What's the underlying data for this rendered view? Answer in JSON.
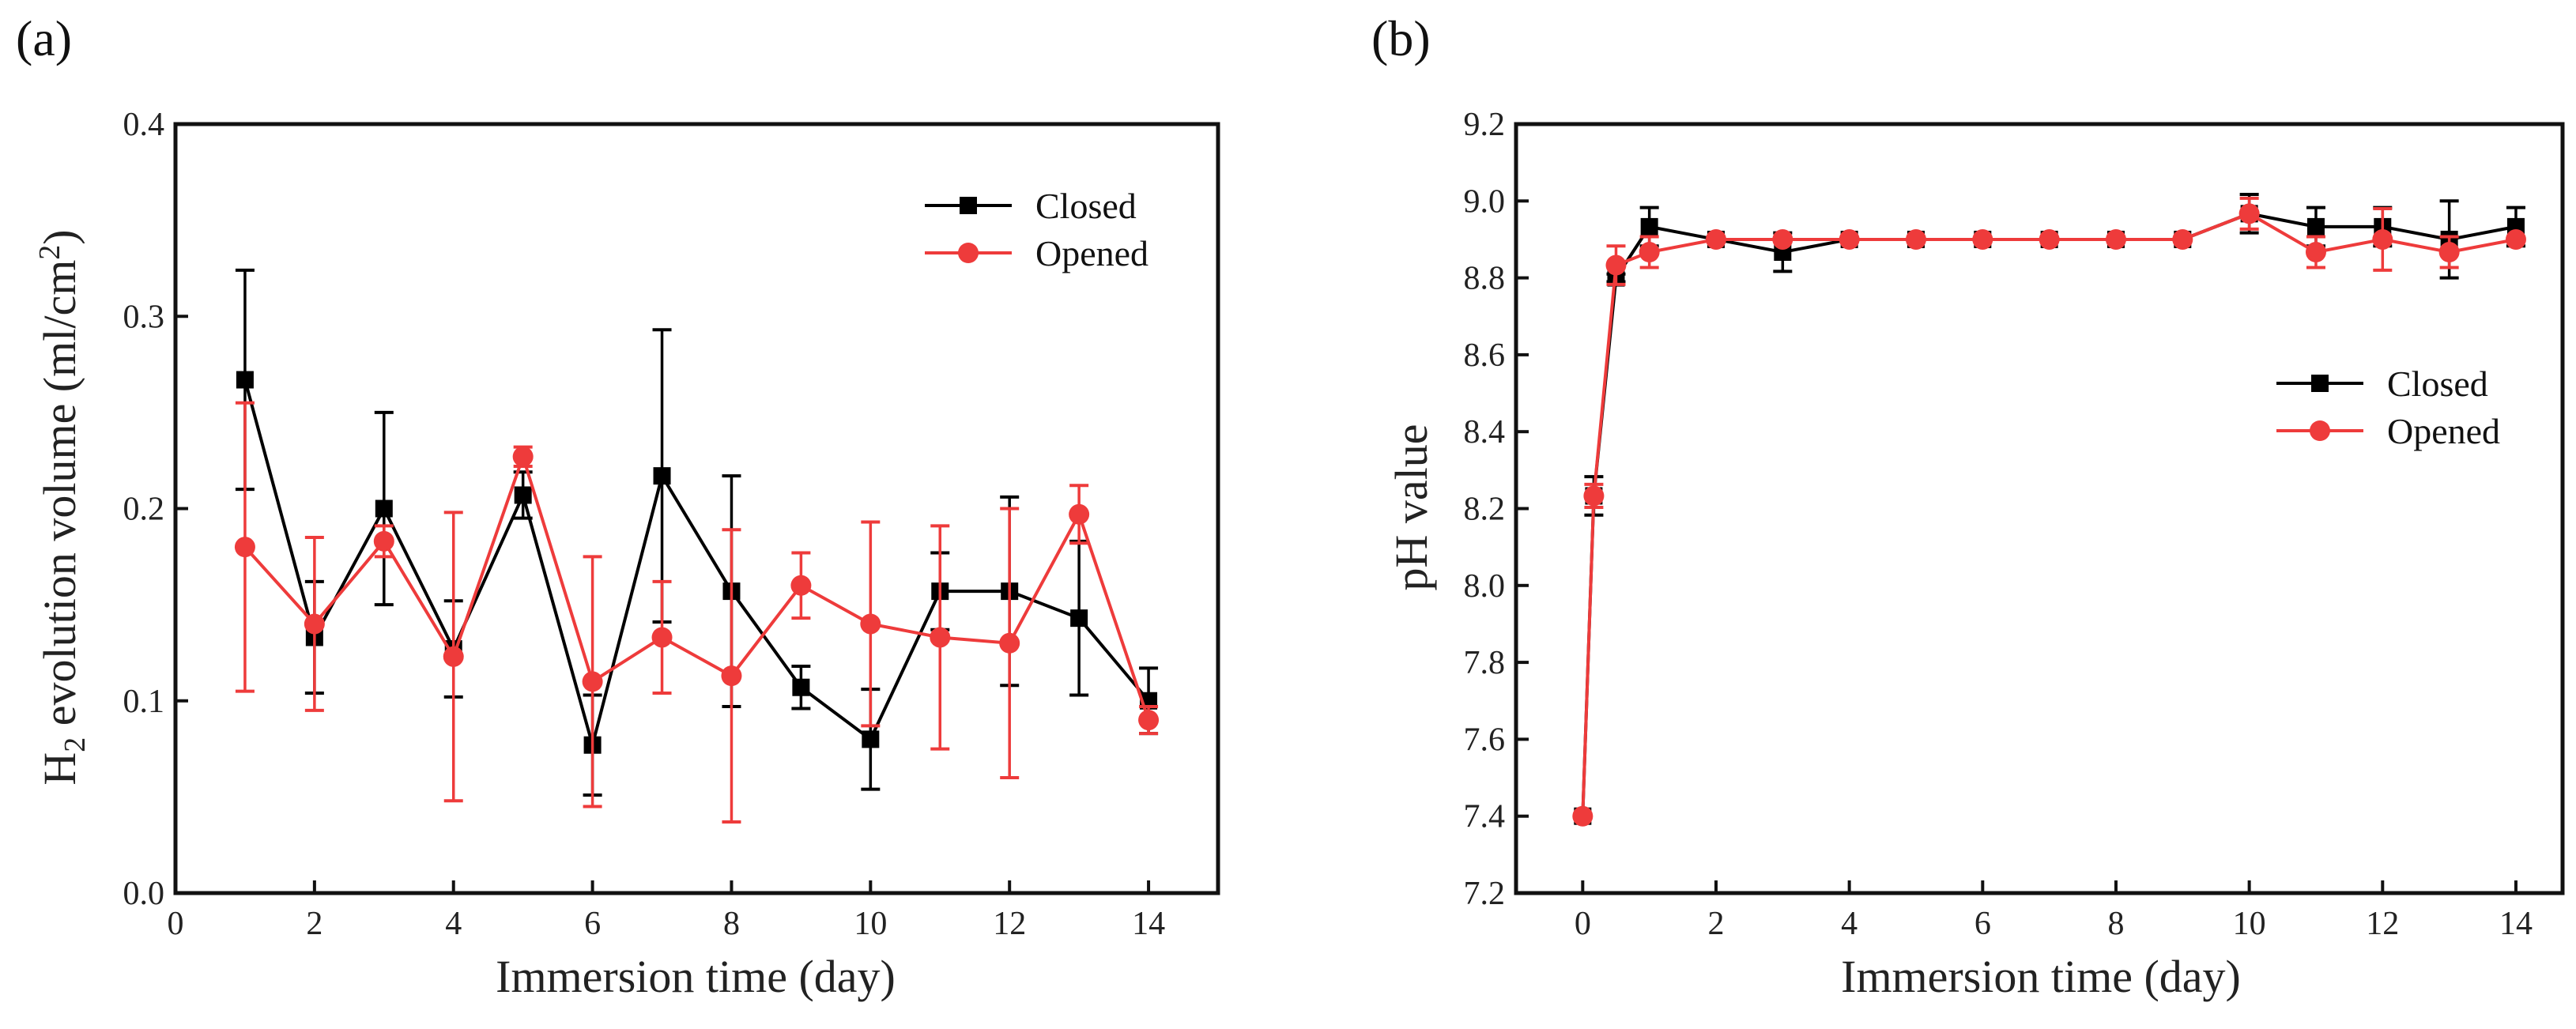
{
  "colors": {
    "closed": "#000000",
    "opened": "#ee3b3b"
  },
  "chart_data": [
    {
      "type": "line",
      "panel_label": "(a)",
      "xlabel": "Immersion time (day)",
      "ylabel_main": "H",
      "ylabel_sub": "2",
      "ylabel_rest": " evolution volume (ml/cm",
      "ylabel_sup": "2",
      "ylabel_end": ")",
      "xlim": [
        0,
        15
      ],
      "ylim": [
        0,
        0.4
      ],
      "xticks": [
        "0",
        "2",
        "4",
        "6",
        "8",
        "10",
        "12",
        "14"
      ],
      "yticks": [
        "0.0",
        "0.1",
        "0.2",
        "0.3",
        "0.4"
      ],
      "legend_position": "top-right",
      "x": [
        1,
        2,
        3,
        4,
        5,
        6,
        7,
        8,
        9,
        10,
        11,
        12,
        13,
        14
      ],
      "series": [
        {
          "name": "Closed",
          "marker": "square",
          "values": [
            0.267,
            0.133,
            0.2,
            0.127,
            0.207,
            0.077,
            0.217,
            0.157,
            0.107,
            0.08,
            0.157,
            0.157,
            0.143,
            0.1
          ],
          "errors": [
            0.057,
            0.029,
            0.05,
            0.025,
            0.012,
            0.026,
            0.076,
            0.06,
            0.011,
            0.026,
            0.02,
            0.049,
            0.04,
            0.017
          ]
        },
        {
          "name": "Opened",
          "marker": "circle",
          "values": [
            0.18,
            0.14,
            0.183,
            0.123,
            0.227,
            0.11,
            0.133,
            0.113,
            0.16,
            0.14,
            0.133,
            0.13,
            0.197,
            0.09
          ],
          "errors": [
            0.075,
            0.045,
            0.008,
            0.075,
            0.005,
            0.065,
            0.029,
            0.076,
            0.017,
            0.053,
            0.058,
            0.07,
            0.015,
            0.007
          ]
        }
      ]
    },
    {
      "type": "line",
      "panel_label": "(b)",
      "xlabel": "Immersion time (day)",
      "ylabel": "pH value",
      "xlim": [
        -1,
        14.7
      ],
      "ylim": [
        7.2,
        9.2
      ],
      "xticks": [
        "0",
        "2",
        "4",
        "6",
        "8",
        "10",
        "12",
        "14"
      ],
      "yticks": [
        "7.2",
        "7.4",
        "7.6",
        "7.8",
        "8.0",
        "8.2",
        "8.4",
        "8.6",
        "8.8",
        "9.0",
        "9.2"
      ],
      "legend_position": "center-right",
      "x": [
        0,
        0.167,
        0.5,
        1,
        2,
        3,
        4,
        5,
        6,
        7,
        8,
        9,
        10,
        11,
        12,
        13,
        14
      ],
      "series": [
        {
          "name": "Closed",
          "marker": "square",
          "values": [
            7.4,
            8.233,
            8.8,
            8.933,
            8.9,
            8.867,
            8.9,
            8.9,
            8.9,
            8.9,
            8.9,
            8.9,
            8.967,
            8.933,
            8.933,
            8.9,
            8.933
          ],
          "errors": [
            0,
            0.05,
            0.01,
            0.05,
            0,
            0.05,
            0,
            0,
            0,
            0,
            0,
            0,
            0.05,
            0.05,
            0.05,
            0.1,
            0.05
          ]
        },
        {
          "name": "Opened",
          "marker": "circle",
          "values": [
            7.4,
            8.233,
            8.833,
            8.867,
            8.9,
            8.9,
            8.9,
            8.9,
            8.9,
            8.9,
            8.9,
            8.9,
            8.967,
            8.867,
            8.9,
            8.867,
            8.9
          ],
          "errors": [
            0,
            0.03,
            0.05,
            0.04,
            0,
            0,
            0,
            0,
            0,
            0,
            0,
            0,
            0.04,
            0.04,
            0.08,
            0.04,
            0
          ]
        }
      ]
    }
  ]
}
